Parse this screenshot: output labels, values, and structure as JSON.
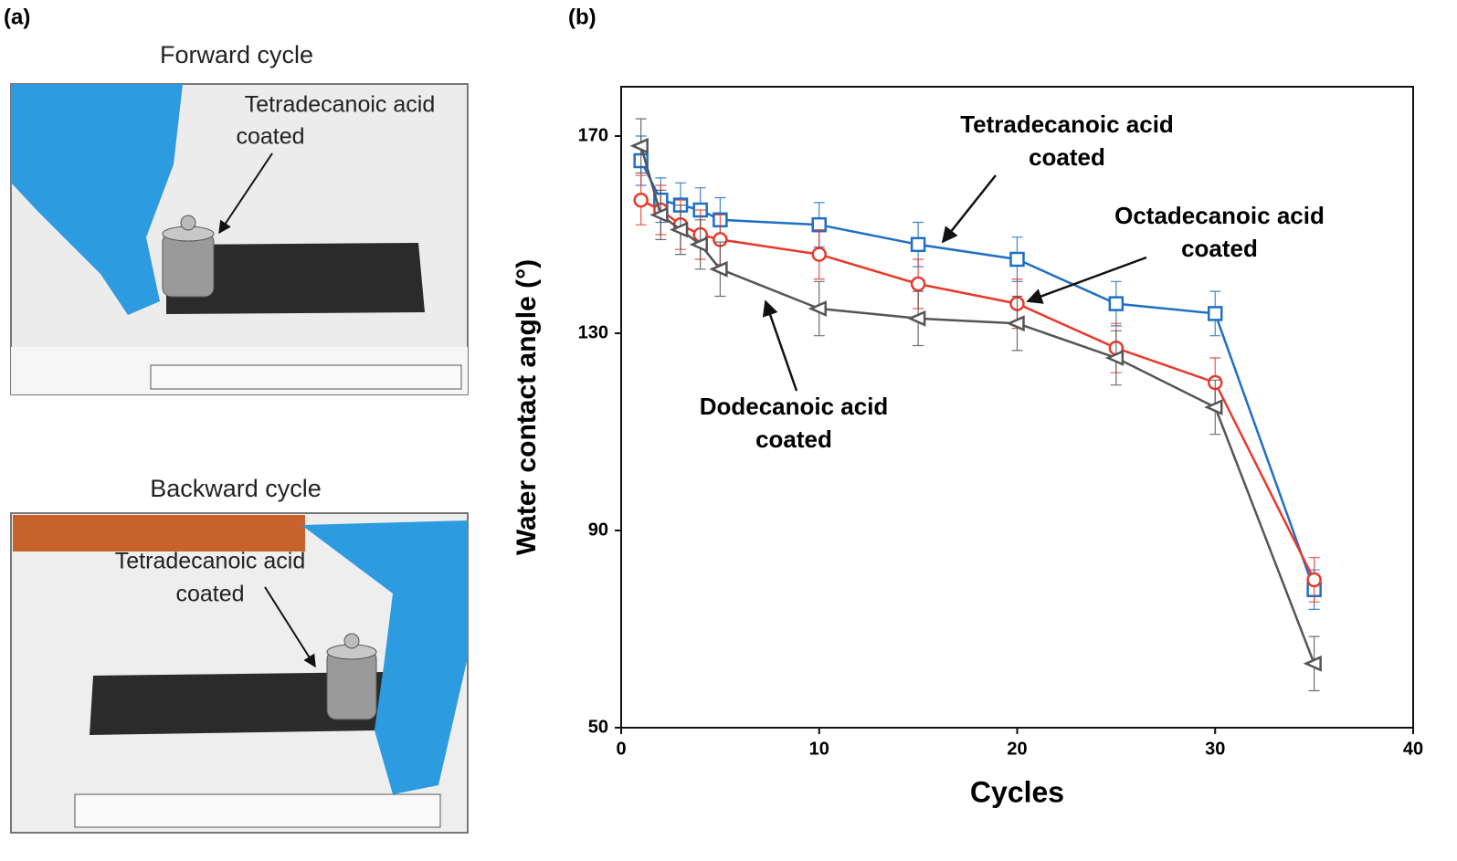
{
  "panel_labels": [
    "(a)",
    "(b)"
  ],
  "photos": [
    {
      "title": "Forward cycle",
      "annotation": [
        "Tetradecanoic acid",
        "coated"
      ]
    },
    {
      "title": "Backward cycle",
      "annotation": [
        "Tetradecanoic acid",
        "coated"
      ]
    }
  ],
  "chart_data": {
    "type": "line",
    "x_label": "Cycles",
    "y_label": "Water contact angle (°)",
    "xlim": [
      0,
      40
    ],
    "xticks": [
      0,
      10,
      20,
      30,
      40
    ],
    "ylim": [
      50,
      180
    ],
    "yticks": [
      50,
      90,
      130,
      170
    ],
    "x": [
      1,
      2,
      3,
      4,
      5,
      10,
      15,
      20,
      25,
      30,
      35
    ],
    "series": [
      {
        "name": "Tetradecanoic acid coated",
        "color": "#1f6fc5",
        "marker": "square",
        "values": [
          165,
          157,
          156,
          155,
          153,
          152,
          148,
          145,
          136,
          134,
          78
        ],
        "errors": [
          5,
          4.5,
          4.5,
          4.5,
          4.5,
          4.5,
          4.5,
          4.5,
          4.5,
          4.5,
          4
        ]
      },
      {
        "name": "Octadecanoic acid coated",
        "color": "#e8392b",
        "marker": "circle",
        "values": [
          157,
          155,
          152,
          150,
          149,
          146,
          140,
          136,
          127,
          120,
          80
        ],
        "errors": [
          5,
          5,
          5,
          5,
          5,
          5,
          5,
          5,
          5,
          5,
          4.5
        ]
      },
      {
        "name": "Dodecanoic acid coated",
        "color": "#555555",
        "marker": "triangle-left",
        "values": [
          168,
          154,
          151,
          148,
          143,
          135,
          133,
          132,
          125,
          115,
          63
        ],
        "errors": [
          5.5,
          5,
          5,
          5,
          5.5,
          5.5,
          5.5,
          5.5,
          5.5,
          5.5,
          5.5
        ]
      }
    ],
    "annotations": [
      {
        "text": [
          "Tetradecanoic acid",
          "coated"
        ]
      },
      {
        "text": [
          "Octadecanoic acid",
          "coated"
        ]
      },
      {
        "text": [
          "Dodecanoic acid",
          "coated"
        ]
      }
    ]
  }
}
